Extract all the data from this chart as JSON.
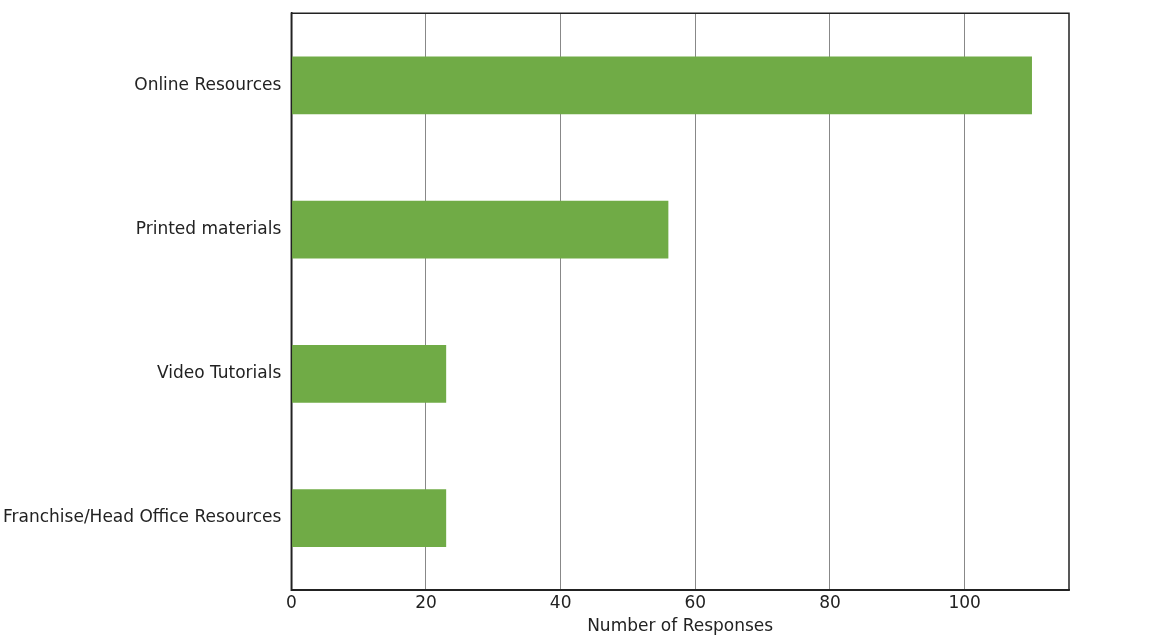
{
  "chart_data": {
    "type": "bar",
    "orientation": "horizontal",
    "xlabel": "Number of Responses",
    "categories": [
      "Online Resources",
      "Printed materials",
      "Video Tutorials",
      "Franchise/Head Office Resources"
    ],
    "values": [
      110,
      56,
      23,
      23
    ],
    "color": "#70ab46",
    "xlim": [
      0,
      115.5
    ],
    "xticks": [
      0,
      20,
      40,
      60,
      80,
      100
    ],
    "grid": "x",
    "legend": false
  }
}
